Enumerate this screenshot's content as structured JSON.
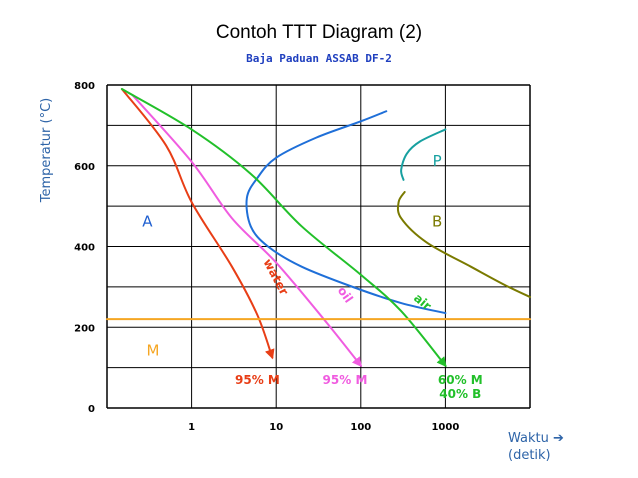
{
  "chart_data": {
    "type": "line",
    "title": "Contoh TTT Diagram (2)",
    "subtitle": "Baja Paduan ASSAB DF-2",
    "ylabel": "Temperatur (°C)",
    "xlabel_line1": "Waktu",
    "xlabel_arrow": "➔",
    "xlabel_line2": "(detik)",
    "xscale": "log",
    "xlim": [
      0.1,
      10000
    ],
    "ylim": [
      0,
      800
    ],
    "grid": true,
    "x_ticks": [
      {
        "value": 1,
        "label": "1"
      },
      {
        "value": 10,
        "label": "10"
      },
      {
        "value": 100,
        "label": "100"
      },
      {
        "value": 1000,
        "label": "1000"
      }
    ],
    "y_ticks": [
      {
        "value": 0,
        "label": "0"
      },
      {
        "value": 200,
        "label": "200"
      },
      {
        "value": 400,
        "label": "400"
      },
      {
        "value": 600,
        "label": "600"
      },
      {
        "value": 800,
        "label": "800"
      }
    ],
    "colors": {
      "water": "#e83e16",
      "oil": "#f05ce0",
      "air": "#22c02a",
      "nose": "#1f6fd8",
      "pearlite": "#17a0a0",
      "bainite": "#7a7a00",
      "ms_line": "#f5a623",
      "zone_a": "#1f5fd0",
      "zone_m": "#f5a623"
    },
    "series": [
      {
        "id": "nose-curve",
        "points": [
          [
            200,
            735
          ],
          [
            100,
            710
          ],
          [
            30,
            670
          ],
          [
            10,
            620
          ],
          [
            6,
            570
          ],
          [
            4.5,
            520
          ],
          [
            5,
            450
          ],
          [
            8,
            400
          ],
          [
            20,
            350
          ],
          [
            80,
            300
          ],
          [
            300,
            260
          ],
          [
            1000,
            235
          ]
        ]
      },
      {
        "id": "pearlite-curve",
        "points": [
          [
            1000,
            690
          ],
          [
            500,
            660
          ],
          [
            350,
            630
          ],
          [
            300,
            590
          ],
          [
            320,
            565
          ]
        ]
      },
      {
        "id": "bainite-curve",
        "points": [
          [
            330,
            535
          ],
          [
            280,
            510
          ],
          [
            300,
            470
          ],
          [
            600,
            410
          ],
          [
            2000,
            350
          ],
          [
            5000,
            305
          ],
          [
            10000,
            275
          ]
        ]
      },
      {
        "id": "water-curve",
        "name": "water",
        "arrow": true,
        "points": [
          [
            0.15,
            790
          ],
          [
            0.5,
            650
          ],
          [
            1,
            510
          ],
          [
            3,
            350
          ],
          [
            6,
            230
          ],
          [
            9,
            125
          ]
        ]
      },
      {
        "id": "oil-curve",
        "name": "oil",
        "arrow": true,
        "points": [
          [
            0.2,
            775
          ],
          [
            1,
            610
          ],
          [
            3,
            470
          ],
          [
            10,
            360
          ],
          [
            40,
            210
          ],
          [
            100,
            105
          ]
        ]
      },
      {
        "id": "air-curve",
        "name": "air",
        "arrow": true,
        "points": [
          [
            0.15,
            790
          ],
          [
            1,
            690
          ],
          [
            5,
            580
          ],
          [
            20,
            450
          ],
          [
            100,
            330
          ],
          [
            300,
            240
          ],
          [
            1000,
            105
          ]
        ]
      },
      {
        "id": "ms-line",
        "points": [
          [
            0.1,
            220
          ],
          [
            10000,
            220
          ]
        ]
      }
    ],
    "annotations": [
      {
        "id": "label-water",
        "text": "water",
        "x": 9,
        "y": 320,
        "angle": 62,
        "color": "#e83e16"
      },
      {
        "id": "label-oil",
        "text": "oil",
        "x": 60,
        "y": 275,
        "angle": 55,
        "color": "#f05ce0"
      },
      {
        "id": "label-air",
        "text": "air",
        "x": 500,
        "y": 255,
        "angle": 40,
        "color": "#22c02a"
      },
      {
        "id": "label-a",
        "text": "A",
        "x": 0.3,
        "y": 450,
        "angle": 0,
        "color": "#1f5fd0"
      },
      {
        "id": "label-m",
        "text": "M",
        "x": 0.35,
        "y": 130,
        "angle": 0,
        "color": "#f5a623"
      },
      {
        "id": "label-p",
        "text": "P",
        "x": 800,
        "y": 600,
        "angle": 0,
        "color": "#17a0a0"
      },
      {
        "id": "label-b",
        "text": "B",
        "x": 800,
        "y": 450,
        "angle": 0,
        "color": "#7a7a00"
      },
      {
        "id": "label-water-95m",
        "text": "95% M",
        "x": 6,
        "y": 60,
        "angle": 0,
        "color": "#e83e16"
      },
      {
        "id": "label-oil-95m",
        "text": "95% M",
        "x": 65,
        "y": 60,
        "angle": 0,
        "color": "#f05ce0"
      },
      {
        "id": "label-air-60m",
        "text": "60% M",
        "x": 1500,
        "y": 60,
        "angle": 0,
        "color": "#22c02a"
      },
      {
        "id": "label-air-40b",
        "text": "40% B",
        "x": 1500,
        "y": 25,
        "angle": 0,
        "color": "#22c02a"
      }
    ]
  }
}
